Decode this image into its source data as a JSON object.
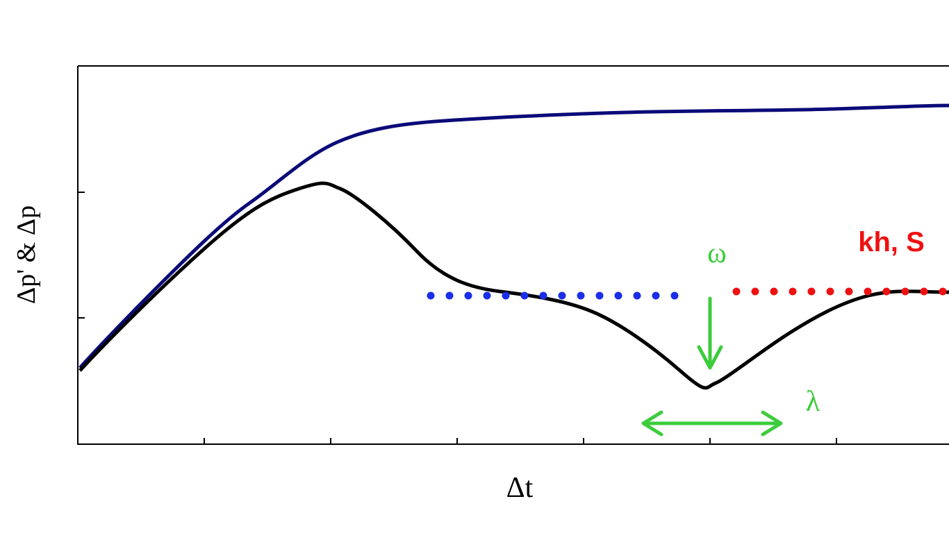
{
  "axes": {
    "y_label": "Δp' & Δp",
    "x_label": "Δt"
  },
  "annotations": {
    "omega": "ω",
    "lambda": "λ",
    "kh_s": "kh, S"
  }
}
